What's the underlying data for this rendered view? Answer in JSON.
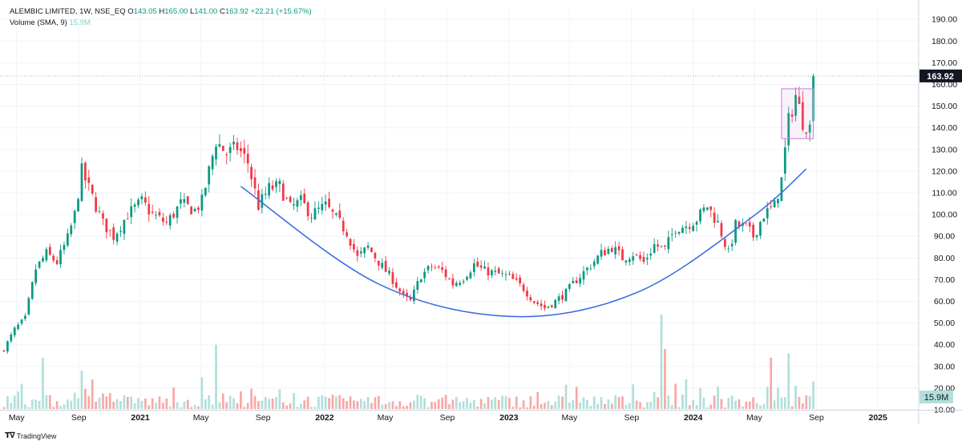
{
  "legend": {
    "symbol": "ALEMBIC LIMITED, 1W, NSE_EQ",
    "o_label": "O",
    "o": "143.05",
    "h_label": "H",
    "h": "165.00",
    "l_label": "L",
    "l": "141.00",
    "c_label": "C",
    "c": "163.92",
    "change": "+22.21 (+15.67%)",
    "volume_label": "Volume (SMA, 9)",
    "volume_value": "15.9M"
  },
  "footer": {
    "brand": "TradingView",
    "logo": "tradingview-logo-icon"
  },
  "colors": {
    "up": "#089981",
    "down": "#f23645",
    "vol_up": "#b2dfdb",
    "vol_down": "#f7a9a7",
    "curve": "#3d6fe0",
    "box": "#d28ee0"
  },
  "chart_data": {
    "type": "candlestick",
    "interval": "1W",
    "last_price": 163.92,
    "last_price_label": "163.92",
    "volume_badge_label": "15.9M",
    "y_axis": {
      "ticks": [
        190,
        180,
        170,
        160,
        150,
        140,
        130,
        120,
        110,
        100,
        90,
        80,
        70,
        60,
        50,
        40,
        30,
        20,
        10
      ],
      "tick_labels": [
        "190.00",
        "180.00",
        "170.00",
        "160.00",
        "150.00",
        "140.00",
        "130.00",
        "120.00",
        "110.00",
        "100.00",
        "90.00",
        "80.00",
        "70.00",
        "60.00",
        "50.00",
        "40.00",
        "30.00",
        "20.00",
        "10.00"
      ],
      "range": [
        8,
        195
      ]
    },
    "x_axis": {
      "start": "2020-04-06",
      "ticks": [
        {
          "date": "2020-05-01",
          "label": "May",
          "bold": false
        },
        {
          "date": "2020-09-01",
          "label": "Sep",
          "bold": false
        },
        {
          "date": "2021-01-01",
          "label": "2021",
          "bold": true
        },
        {
          "date": "2021-05-01",
          "label": "May",
          "bold": false
        },
        {
          "date": "2021-09-01",
          "label": "Sep",
          "bold": false
        },
        {
          "date": "2022-01-01",
          "label": "2022",
          "bold": true
        },
        {
          "date": "2022-05-01",
          "label": "May",
          "bold": false
        },
        {
          "date": "2022-09-01",
          "label": "Sep",
          "bold": false
        },
        {
          "date": "2023-01-01",
          "label": "2023",
          "bold": true
        },
        {
          "date": "2023-05-01",
          "label": "May",
          "bold": false
        },
        {
          "date": "2023-09-01",
          "label": "Sep",
          "bold": false
        },
        {
          "date": "2024-01-01",
          "label": "2024",
          "bold": true
        },
        {
          "date": "2024-05-01",
          "label": "May",
          "bold": false
        },
        {
          "date": "2024-09-01",
          "label": "Sep",
          "bold": false
        },
        {
          "date": "2025-01-01",
          "label": "2025",
          "bold": true
        }
      ]
    },
    "price_path": [
      [
        "2020-04-06",
        38
      ],
      [
        "2020-04-27",
        47
      ],
      [
        "2020-05-18",
        52
      ],
      [
        "2020-05-25",
        60
      ],
      [
        "2020-06-08",
        75
      ],
      [
        "2020-06-29",
        82
      ],
      [
        "2020-07-20",
        78
      ],
      [
        "2020-08-10",
        89
      ],
      [
        "2020-08-24",
        100
      ],
      [
        "2020-09-07",
        120
      ],
      [
        "2020-09-28",
        108
      ],
      [
        "2020-10-19",
        96
      ],
      [
        "2020-11-09",
        90
      ],
      [
        "2020-12-07",
        100
      ],
      [
        "2021-01-04",
        106
      ],
      [
        "2021-01-25",
        100
      ],
      [
        "2021-02-22",
        96
      ],
      [
        "2021-03-22",
        105
      ],
      [
        "2021-04-19",
        102
      ],
      [
        "2021-05-03",
        106
      ],
      [
        "2021-05-17",
        120
      ],
      [
        "2021-05-31",
        134
      ],
      [
        "2021-06-21",
        128
      ],
      [
        "2021-07-12",
        131
      ],
      [
        "2021-08-02",
        124
      ],
      [
        "2021-08-23",
        104
      ],
      [
        "2021-09-13",
        112
      ],
      [
        "2021-10-04",
        113
      ],
      [
        "2021-10-25",
        103
      ],
      [
        "2021-11-15",
        106
      ],
      [
        "2021-12-06",
        100
      ],
      [
        "2022-01-03",
        104
      ],
      [
        "2022-01-24",
        98
      ],
      [
        "2022-02-14",
        92
      ],
      [
        "2022-03-07",
        80
      ],
      [
        "2022-03-28",
        85
      ],
      [
        "2022-04-25",
        76
      ],
      [
        "2022-05-16",
        70
      ],
      [
        "2022-06-06",
        62
      ],
      [
        "2022-06-20",
        60
      ],
      [
        "2022-07-11",
        72
      ],
      [
        "2022-08-01",
        76
      ],
      [
        "2022-08-22",
        74
      ],
      [
        "2022-09-12",
        68
      ],
      [
        "2022-10-03",
        71
      ],
      [
        "2022-10-24",
        77
      ],
      [
        "2022-11-14",
        74
      ],
      [
        "2022-12-05",
        73
      ],
      [
        "2023-01-02",
        71
      ],
      [
        "2023-01-30",
        66
      ],
      [
        "2023-02-20",
        60
      ],
      [
        "2023-03-13",
        57
      ],
      [
        "2023-04-03",
        60
      ],
      [
        "2023-04-24",
        64
      ],
      [
        "2023-05-15",
        70
      ],
      [
        "2023-06-05",
        75
      ],
      [
        "2023-07-03",
        82
      ],
      [
        "2023-07-24",
        85
      ],
      [
        "2023-08-14",
        80
      ],
      [
        "2023-09-04",
        82
      ],
      [
        "2023-09-25",
        78
      ],
      [
        "2023-10-16",
        86
      ],
      [
        "2023-11-06",
        84
      ],
      [
        "2023-11-27",
        94
      ],
      [
        "2023-12-18",
        95
      ],
      [
        "2024-01-08",
        98
      ],
      [
        "2024-01-29",
        104
      ],
      [
        "2024-02-19",
        96
      ],
      [
        "2024-03-11",
        82
      ],
      [
        "2024-03-25",
        95
      ],
      [
        "2024-04-15",
        94
      ],
      [
        "2024-04-29",
        90
      ],
      [
        "2024-05-20",
        100
      ],
      [
        "2024-06-10",
        104
      ],
      [
        "2024-06-24",
        116
      ],
      [
        "2024-07-08",
        143
      ],
      [
        "2024-07-22",
        155
      ],
      [
        "2024-08-05",
        143
      ],
      [
        "2024-08-19",
        140
      ],
      [
        "2024-08-26",
        163.92
      ]
    ],
    "volume_spikes": [
      [
        "2020-06-22",
        34
      ],
      [
        "2020-09-07",
        28
      ],
      [
        "2020-09-28",
        24
      ],
      [
        "2021-05-03",
        25
      ],
      [
        "2021-05-31",
        40
      ],
      [
        "2023-10-30",
        54
      ],
      [
        "2023-11-06",
        38
      ],
      [
        "2023-11-27",
        22
      ],
      [
        "2023-12-18",
        24
      ],
      [
        "2024-01-15",
        20
      ],
      [
        "2024-06-03",
        34
      ],
      [
        "2024-07-08",
        36
      ],
      [
        "2024-07-22",
        21
      ],
      [
        "2024-08-26",
        23
      ]
    ],
    "annotations": [
      {
        "type": "cup-curve",
        "points": [
          [
            "2021-07-19",
            113
          ],
          [
            "2022-04-18",
            68
          ],
          [
            "2023-01-09",
            53
          ],
          [
            "2023-09-11",
            64
          ],
          [
            "2024-04-22",
            98
          ],
          [
            "2024-08-12",
            121
          ]
        ]
      },
      {
        "type": "rectangle",
        "from": [
          "2024-06-24",
          158
        ],
        "to": [
          "2024-08-26",
          135
        ]
      },
      {
        "type": "last-price-line",
        "value": 163.92
      }
    ]
  }
}
